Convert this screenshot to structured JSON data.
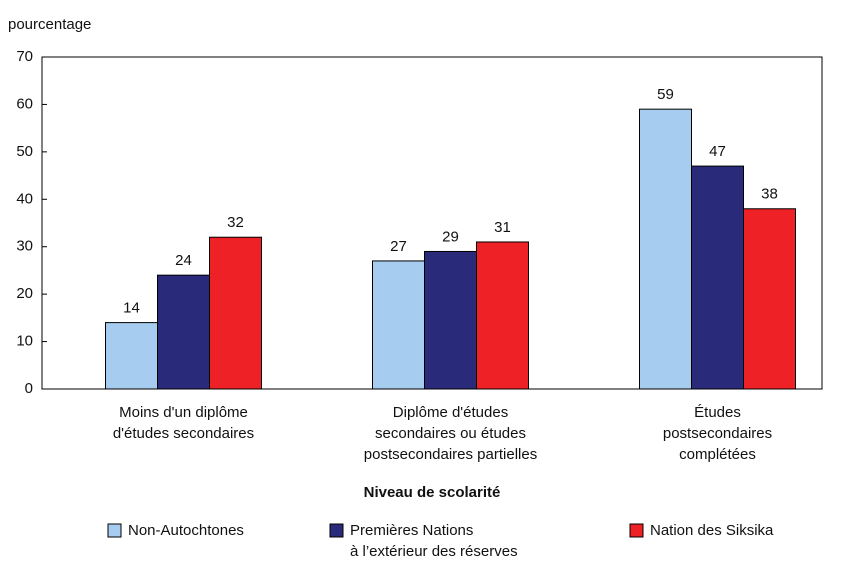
{
  "chart_data": {
    "type": "bar",
    "y_axis_label": "pourcentage",
    "x_axis_label": "Niveau de scolarité",
    "categories": [
      [
        "Moins d'un diplôme",
        "d'études secondaires"
      ],
      [
        "Diplôme d'études",
        "secondaires ou études",
        "postsecondaires partielles"
      ],
      [
        "Études",
        "postsecondaires",
        "complétées"
      ]
    ],
    "series": [
      {
        "name": [
          "Non-Autochtones"
        ],
        "color": "#a6cdef",
        "values": [
          14,
          27,
          59
        ]
      },
      {
        "name": [
          "Premières Nations",
          "à l’extérieur des réserves"
        ],
        "color": "#2a2a7a",
        "values": [
          24,
          29,
          47
        ]
      },
      {
        "name": [
          "Nation des Siksika"
        ],
        "color": "#ed2126",
        "values": [
          32,
          31,
          38
        ]
      }
    ],
    "ylim": [
      0,
      70
    ],
    "yticks": [
      0,
      10,
      20,
      30,
      40,
      50,
      60,
      70
    ],
    "grid": false,
    "legend": "bottom"
  }
}
